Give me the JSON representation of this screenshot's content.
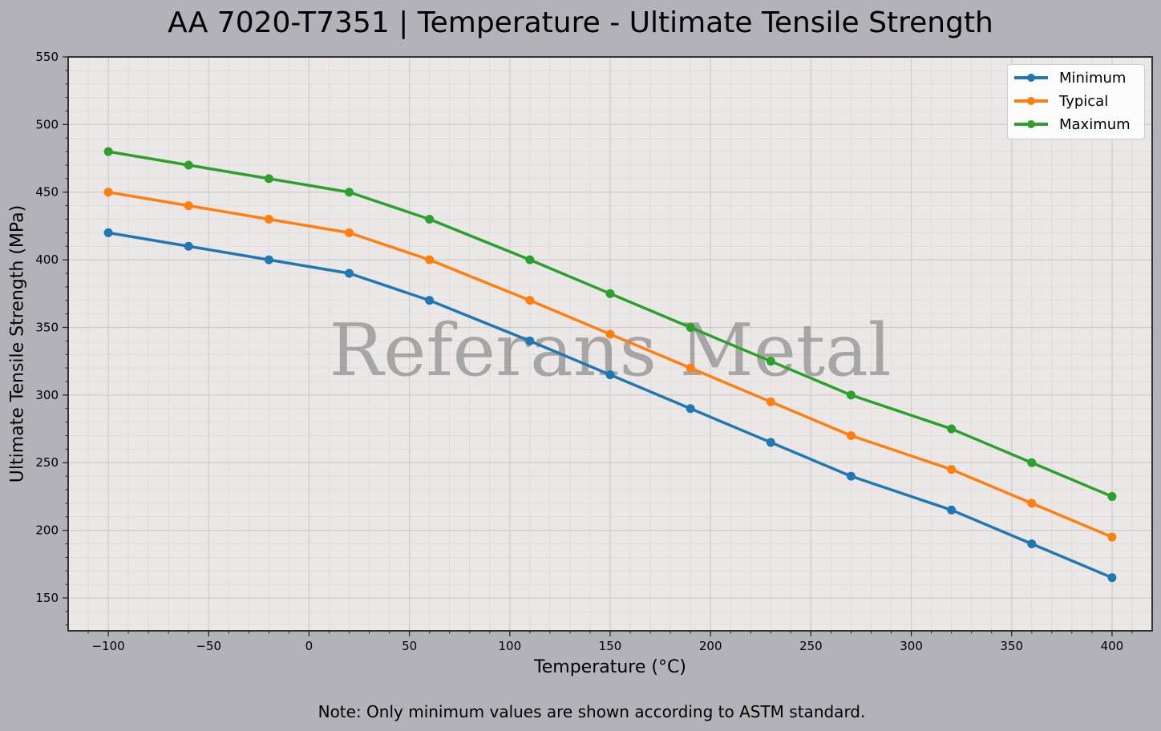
{
  "title": "AA 7020-T7351 | Temperature - Ultimate Tensile Strength",
  "note": "Note: Only minimum values are shown according to ASTM standard.",
  "watermark": "Referans Metal",
  "colors": {
    "background": "#b3b2b8",
    "plot_background": "#eae7e6",
    "minimum": "#1f77b4",
    "typical": "#ff7f0e",
    "maximum": "#2ca02c"
  },
  "chart_data": {
    "type": "line",
    "title": "AA 7020-T7351 | Temperature - Ultimate Tensile Strength",
    "xlabel": "Temperature (°C)",
    "ylabel": "Ultimate Tensile Strength (MPa)",
    "x": [
      -100,
      -60,
      -20,
      20,
      60,
      110,
      150,
      190,
      230,
      270,
      320,
      360,
      400
    ],
    "series": [
      {
        "name": "Minimum",
        "color": "#1f77b4",
        "values": [
          420,
          410,
          400,
          390,
          370,
          340,
          315,
          290,
          265,
          240,
          215,
          190,
          165
        ]
      },
      {
        "name": "Typical",
        "color": "#ff7f0e",
        "values": [
          450,
          440,
          430,
          420,
          400,
          370,
          345,
          320,
          295,
          270,
          245,
          220,
          195
        ]
      },
      {
        "name": "Maximum",
        "color": "#2ca02c",
        "values": [
          480,
          470,
          460,
          450,
          430,
          400,
          375,
          350,
          325,
          300,
          275,
          250,
          225
        ]
      }
    ],
    "xlim": [
      -120,
      420
    ],
    "ylim": [
      125.7,
      550
    ],
    "xticks": [
      -100,
      -50,
      0,
      50,
      100,
      150,
      200,
      250,
      300,
      350,
      400
    ],
    "xtick_labels": [
      "−100",
      "−50",
      "0",
      "50",
      "100",
      "150",
      "200",
      "250",
      "300",
      "350",
      "400"
    ],
    "yticks": [
      150,
      200,
      250,
      300,
      350,
      400,
      450,
      500,
      550
    ],
    "grid": true,
    "minor_grid": true,
    "legend_position": "upper right",
    "annotations": [
      "Referans Metal"
    ]
  }
}
